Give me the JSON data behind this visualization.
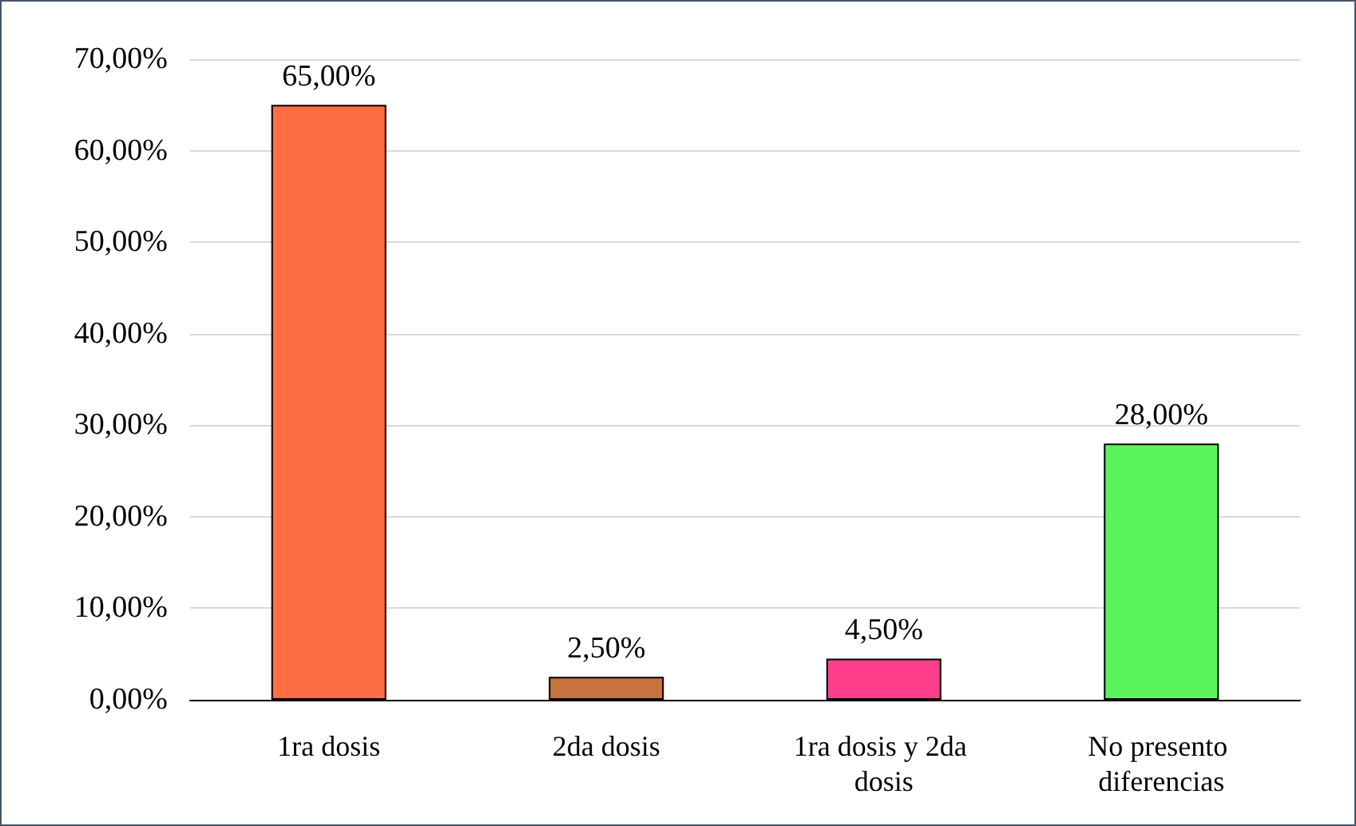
{
  "chart_data": {
    "type": "bar",
    "categories": [
      "1ra dosis",
      "2da dosis",
      "1ra dosis y 2da dosis",
      "No presento diferencias"
    ],
    "values": [
      65,
      2.5,
      4.5,
      28
    ],
    "colors": [
      "#ff6d45",
      "#c8733d",
      "#ff3f8c",
      "#5cf45c"
    ],
    "value_labels": [
      "65,00%",
      "2,50%",
      "4,50%",
      "28,00%"
    ],
    "ylim": [
      0,
      70
    ],
    "yticks": [
      {
        "value": 0,
        "label": "0,00%"
      },
      {
        "value": 10,
        "label": "10,00%"
      },
      {
        "value": 20,
        "label": "20,00%"
      },
      {
        "value": 30,
        "label": "30,00%"
      },
      {
        "value": 40,
        "label": "40,00%"
      },
      {
        "value": 50,
        "label": "50,00%"
      },
      {
        "value": 60,
        "label": "60,00%"
      },
      {
        "value": 70,
        "label": "70,00%"
      }
    ],
    "grid": "y"
  }
}
